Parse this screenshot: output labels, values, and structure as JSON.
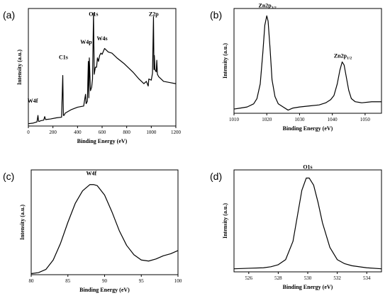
{
  "chart_data": [
    {
      "type": "line",
      "panel": "(a)",
      "xlabel": "Binding Energy (eV)",
      "ylabel": "Intensity (a.u.)",
      "xlim": [
        0,
        1200
      ],
      "ylim": [
        0,
        100
      ],
      "xticks": [
        "0",
        "200",
        "400",
        "600",
        "800",
        "1000",
        "1200"
      ],
      "xtick_values": [
        0,
        200,
        400,
        600,
        800,
        1000,
        1200
      ],
      "show_y_ticks": false,
      "annotations": [
        {
          "text": "W4f",
          "x": 35,
          "y": 18
        },
        {
          "text": "C1s",
          "x": 285,
          "y": 55
        },
        {
          "text": "W4p",
          "x": 470,
          "y": 68
        },
        {
          "text": "O1s",
          "x": 530,
          "y": 92
        },
        {
          "text": "W4s",
          "x": 600,
          "y": 71
        },
        {
          "text": "Z2p",
          "x": 1020,
          "y": 92
        }
      ],
      "series": [
        {
          "x": [
            0,
            40,
            70,
            78,
            83,
            90,
            100,
            125,
            133,
            140,
            180,
            230,
            270,
            280,
            285,
            290,
            300,
            350,
            400,
            450,
            465,
            470,
            475,
            480,
            488,
            492,
            496,
            505,
            515,
            522,
            530,
            536,
            545,
            555,
            562,
            570,
            580,
            590,
            600,
            620,
            650,
            680,
            720,
            780,
            850,
            900,
            940,
            960,
            975,
            980,
            1000,
            1010,
            1018,
            1022,
            1025,
            1030,
            1040,
            1045,
            1050,
            1060,
            1080,
            1100,
            1150,
            1200
          ],
          "y": [
            2,
            2.5,
            3.5,
            9,
            4,
            4,
            4.5,
            5,
            8,
            5.5,
            6,
            7,
            7.5,
            43,
            9,
            9,
            11,
            14,
            16,
            17,
            27,
            19,
            20,
            21,
            55,
            24,
            58,
            30,
            33,
            40,
            96,
            44,
            50,
            50,
            58,
            55,
            60,
            62,
            61,
            66,
            63,
            62,
            58,
            53,
            46,
            40,
            36,
            38,
            34,
            40,
            39,
            45,
            93,
            48,
            60,
            48,
            46,
            56,
            44,
            42,
            40,
            38,
            37,
            36
          ]
        }
      ]
    },
    {
      "type": "line",
      "panel": "(b)",
      "xlabel": "Binding Energy (eV)",
      "ylabel": "Intensity (a.u.)",
      "xlim": [
        1010,
        1055
      ],
      "ylim": [
        0,
        100
      ],
      "xticks": [
        "1010",
        "1020",
        "1030",
        "1040",
        "1050"
      ],
      "xtick_values": [
        1010,
        1020,
        1030,
        1040,
        1050
      ],
      "show_y_ticks": false,
      "annotations": [
        {
          "text": "Zn2p",
          "sub": "3/2",
          "x": 1020.2,
          "y": 99
        },
        {
          "text": "Zn2p",
          "sub": "1/2",
          "x": 1043.2,
          "y": 51
        }
      ],
      "series": [
        {
          "x": [
            1010,
            1012,
            1014,
            1016,
            1017,
            1018,
            1018.8,
            1019.4,
            1020,
            1020.4,
            1021,
            1021.6,
            1022.5,
            1023.5,
            1025,
            1026.5,
            1028,
            1030,
            1033,
            1036,
            1038,
            1039.5,
            1040.5,
            1041.5,
            1042.3,
            1043,
            1043.6,
            1044.3,
            1045,
            1045.8,
            1047,
            1049,
            1052,
            1055
          ],
          "y": [
            4,
            5,
            6,
            9,
            14,
            28,
            58,
            84,
            93,
            88,
            62,
            32,
            16,
            9,
            6,
            3,
            5,
            6,
            7,
            8,
            10,
            13,
            17,
            28,
            41,
            49,
            46,
            34,
            22,
            14,
            11,
            10,
            11,
            11
          ]
        }
      ]
    },
    {
      "type": "line",
      "panel": "(c)",
      "xlabel": "Binding Energy (eV)",
      "ylabel": "Intensity (a.u.)",
      "xlim": [
        80,
        100
      ],
      "ylim": [
        0,
        100
      ],
      "xticks": [
        "80",
        "85",
        "90",
        "95",
        "100"
      ],
      "xtick_values": [
        80,
        85,
        90,
        95,
        100
      ],
      "show_y_ticks": false,
      "annotations": [
        {
          "text": "W4f",
          "x": 88.2,
          "y": 93
        }
      ],
      "series": [
        {
          "x": [
            80,
            81,
            82,
            83,
            84,
            85,
            86,
            87,
            88,
            88.5,
            89,
            90,
            91,
            92,
            93,
            94,
            95,
            96,
            97,
            98,
            99,
            100
          ],
          "y": [
            1,
            2,
            5,
            14,
            30,
            50,
            68,
            80,
            86,
            86,
            85,
            76,
            60,
            42,
            28,
            19,
            14,
            13,
            15,
            18,
            20,
            23
          ]
        }
      ]
    },
    {
      "type": "line",
      "panel": "(d)",
      "xlabel": "Binding Energy (eV)",
      "ylabel": "Intensity (a.u.)",
      "xlim": [
        525,
        535
      ],
      "ylim": [
        0,
        100
      ],
      "xticks": [
        "526",
        "528",
        "530",
        "532",
        "534"
      ],
      "xtick_values": [
        526,
        528,
        530,
        532,
        534
      ],
      "show_y_ticks": false,
      "annotations": [
        {
          "text": "O1s",
          "x": 530,
          "y": 99
        }
      ],
      "series": [
        {
          "x": [
            525,
            526,
            527,
            527.5,
            528,
            528.5,
            529,
            529.3,
            529.6,
            529.9,
            530.1,
            530.4,
            530.7,
            531,
            531.5,
            532,
            532.5,
            533,
            534,
            535
          ],
          "y": [
            3,
            3.5,
            4,
            5,
            7,
            12,
            30,
            55,
            80,
            92,
            92,
            85,
            68,
            48,
            24,
            12,
            8,
            6,
            4,
            3
          ]
        }
      ]
    }
  ]
}
